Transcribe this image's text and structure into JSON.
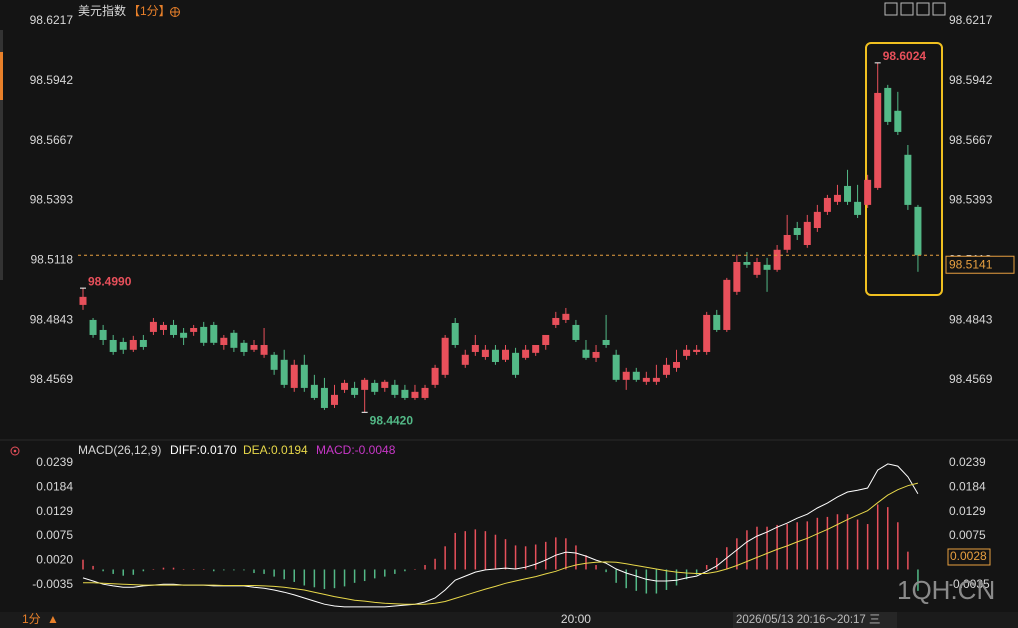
{
  "header": {
    "title": "美元指数",
    "period": "【1分】"
  },
  "footer": {
    "period": "1分",
    "time_range": "2026/05/13 20:16～20:17 三"
  },
  "watermark": "1QH.CN",
  "chart_data": [
    {
      "type": "candlestick",
      "categories": [
        null,
        null,
        null,
        null,
        null,
        null,
        null,
        null,
        null,
        null,
        null,
        null,
        null,
        null,
        null,
        null,
        null,
        null,
        null,
        null,
        null,
        null,
        null,
        null,
        null,
        null,
        null,
        null,
        null,
        null,
        null,
        null,
        null,
        null,
        null,
        null,
        null,
        null,
        null,
        null,
        null,
        null,
        null,
        null,
        null,
        null,
        null,
        null,
        null,
        "20:00",
        null,
        null,
        null,
        null,
        null,
        null,
        null,
        null,
        null,
        null,
        null,
        null,
        null,
        null,
        null,
        null,
        null,
        null,
        null,
        null,
        null,
        null,
        null,
        null,
        null,
        null,
        null,
        null,
        null,
        null,
        null,
        null,
        null,
        null
      ],
      "open": [
        98.4913,
        98.4844,
        98.4798,
        98.4752,
        98.4743,
        98.4707,
        98.4752,
        98.4789,
        98.4798,
        98.4821,
        98.4785,
        98.4789,
        98.4812,
        98.4821,
        98.4729,
        98.4785,
        98.4739,
        98.4707,
        98.4684,
        98.4684,
        98.4661,
        98.4532,
        98.4638,
        98.4546,
        98.4532,
        98.4454,
        98.4523,
        98.4532,
        98.4523,
        98.4555,
        98.4532,
        98.4546,
        98.4523,
        98.4486,
        98.4486,
        98.4546,
        98.4592,
        98.483,
        98.4638,
        98.4697,
        98.4674,
        98.4707,
        98.4661,
        98.4693,
        98.467,
        98.4693,
        98.4729,
        98.4821,
        98.4844,
        98.4821,
        98.4707,
        98.467,
        98.4752,
        98.4684,
        98.4569,
        98.4606,
        98.456,
        98.456,
        98.4592,
        98.4624,
        98.4679,
        98.4697,
        98.4697,
        98.4867,
        98.4798,
        98.4973,
        98.511,
        98.5051,
        98.5097,
        98.5074,
        98.5166,
        98.5266,
        98.5188,
        98.5266,
        98.534,
        98.5386,
        98.5459,
        98.5386,
        98.5372,
        98.545,
        98.5909,
        98.5804,
        98.5602,
        98.5363
      ],
      "high": [
        98.499,
        98.4853,
        98.4821,
        98.4775,
        98.4762,
        98.4771,
        98.4775,
        98.4853,
        98.4835,
        98.4844,
        98.4807,
        98.4821,
        98.4835,
        98.4835,
        98.4775,
        98.4798,
        98.4752,
        98.4752,
        98.4807,
        98.4697,
        98.4707,
        98.4661,
        98.4684,
        98.4592,
        98.4578,
        98.4546,
        98.4569,
        98.456,
        98.4578,
        98.4569,
        98.4569,
        98.4569,
        98.4546,
        98.4546,
        98.4546,
        98.4638,
        98.4775,
        98.4853,
        98.4707,
        98.4775,
        98.4729,
        98.4729,
        98.4729,
        98.4716,
        98.4729,
        98.4729,
        98.4775,
        98.4881,
        98.4899,
        98.4844,
        98.4752,
        98.4729,
        98.4867,
        98.4707,
        98.4624,
        98.4624,
        98.4606,
        98.4638,
        98.467,
        98.4707,
        98.4729,
        98.4729,
        98.4881,
        98.489,
        98.5037,
        98.5143,
        98.5156,
        98.5129,
        98.5129,
        98.5188,
        98.5326,
        98.5294,
        98.5326,
        98.5372,
        98.5418,
        98.5464,
        98.5533,
        98.5464,
        98.551,
        98.6024,
        98.5923,
        98.5891,
        98.5647,
        98.5372
      ],
      "low": [
        98.489,
        98.4762,
        98.4729,
        98.4684,
        98.4688,
        98.4697,
        98.4707,
        98.4775,
        98.4775,
        98.4762,
        98.4729,
        98.4771,
        98.4725,
        98.4729,
        98.4707,
        98.4697,
        98.4679,
        98.4697,
        98.467,
        98.4592,
        98.4532,
        98.4514,
        98.4514,
        98.4477,
        98.4431,
        98.444,
        98.4509,
        98.4486,
        98.442,
        98.45,
        98.4514,
        98.4486,
        98.4477,
        98.4477,
        98.4477,
        98.4532,
        98.4578,
        98.4716,
        98.4624,
        98.4679,
        98.4661,
        98.4638,
        98.4651,
        98.4578,
        98.4661,
        98.4679,
        98.4707,
        98.4807,
        98.483,
        98.4743,
        98.4661,
        98.4651,
        98.4716,
        98.456,
        98.4523,
        98.456,
        98.4546,
        98.4546,
        98.4578,
        98.4606,
        98.4661,
        98.4684,
        98.4684,
        98.4789,
        98.4789,
        98.4959,
        98.5083,
        98.5037,
        98.4973,
        98.5065,
        98.5152,
        98.5211,
        98.5175,
        98.5248,
        98.5326,
        98.5372,
        98.5372,
        98.5312,
        98.5358,
        98.5441,
        98.5739,
        98.5693,
        98.5349,
        98.5065
      ],
      "close": [
        98.495,
        98.4775,
        98.4752,
        98.4697,
        98.4707,
        98.4752,
        98.472,
        98.4835,
        98.4821,
        98.4775,
        98.4762,
        98.4807,
        98.4739,
        98.4739,
        98.4762,
        98.4716,
        98.4697,
        98.4729,
        98.4729,
        98.4615,
        98.4546,
        98.4638,
        98.4532,
        98.4486,
        98.444,
        98.45,
        98.4555,
        98.45,
        98.4569,
        98.4514,
        98.456,
        98.45,
        98.4486,
        98.4514,
        98.4532,
        98.4624,
        98.4762,
        98.4729,
        98.4684,
        98.4729,
        98.4707,
        98.4651,
        98.4707,
        98.4592,
        98.4707,
        98.4729,
        98.4775,
        98.4853,
        98.4872,
        98.4752,
        98.467,
        98.4697,
        98.4729,
        98.4569,
        98.4606,
        98.4569,
        98.4578,
        98.4578,
        98.4638,
        98.4651,
        98.4707,
        98.4707,
        98.4867,
        98.4798,
        98.5028,
        98.511,
        98.5097,
        98.511,
        98.5074,
        98.5166,
        98.5234,
        98.5234,
        98.5294,
        98.534,
        98.5404,
        98.5418,
        98.5386,
        98.5326,
        98.5487,
        98.5886,
        98.5753,
        98.5707,
        98.5372,
        98.5141
      ],
      "up_color": "#e8505b",
      "down_color": "#53b987",
      "ylim": [
        98.4348,
        98.6285
      ],
      "yticks": [
        98.6217,
        98.5942,
        98.5667,
        98.5393,
        98.5118,
        98.4843,
        98.4569
      ],
      "grid": false,
      "last_price": 98.5141,
      "last_price_color": "#e8a040",
      "annotations": [
        {
          "value": 98.499,
          "label": "98.4990"
        },
        {
          "value": 98.442,
          "label": "98.4420"
        },
        98.6024
      ]
    },
    {
      "type": "macd",
      "title": "MACD(26,12,9)",
      "series": [
        {
          "name": "DIFF:0.0170",
          "color": "#ffffff",
          "type": "line",
          "values": [
            -0.0019,
            -0.0026,
            -0.0033,
            -0.0037,
            -0.004,
            -0.004,
            -0.0037,
            -0.0035,
            -0.0033,
            -0.0033,
            -0.0035,
            -0.0035,
            -0.0035,
            -0.0037,
            -0.0037,
            -0.0037,
            -0.0037,
            -0.004,
            -0.0042,
            -0.0046,
            -0.0051,
            -0.0057,
            -0.0064,
            -0.0071,
            -0.0078,
            -0.0082,
            -0.0084,
            -0.0084,
            -0.0084,
            -0.0084,
            -0.0084,
            -0.0082,
            -0.008,
            -0.0078,
            -0.0073,
            -0.0064,
            -0.0046,
            -0.0024,
            -0.0015,
            -0.0006,
            -0.0001,
            0.0001,
            0.0003,
            0.0001,
            0.0005,
            0.0012,
            0.0021,
            0.0032,
            0.0039,
            0.0037,
            0.003,
            0.0021,
            0.0014,
            0.0001,
            -0.0008,
            -0.0015,
            -0.0022,
            -0.0026,
            -0.0026,
            -0.0024,
            -0.0019,
            -0.0015,
            -0.0004,
            0.0008,
            0.0026,
            0.0044,
            0.0062,
            0.0075,
            0.0084,
            0.0095,
            0.0104,
            0.0115,
            0.0124,
            0.0138,
            0.0149,
            0.0163,
            0.0174,
            0.0178,
            0.0183,
            0.0223,
            0.0237,
            0.0232,
            0.0208,
            0.017
          ]
        },
        {
          "name": "DEA:0.0194",
          "color": "#e8d84a",
          "type": "line",
          "values": [
            -0.003,
            -0.003,
            -0.0031,
            -0.0032,
            -0.0033,
            -0.0034,
            -0.0035,
            -0.0035,
            -0.0035,
            -0.0035,
            -0.0035,
            -0.0035,
            -0.0035,
            -0.0035,
            -0.0036,
            -0.0036,
            -0.0036,
            -0.0036,
            -0.0037,
            -0.0038,
            -0.004,
            -0.0043,
            -0.0046,
            -0.0051,
            -0.0056,
            -0.0061,
            -0.0065,
            -0.0069,
            -0.0071,
            -0.0074,
            -0.0076,
            -0.0077,
            -0.0078,
            -0.0078,
            -0.0078,
            -0.0076,
            -0.0072,
            -0.0065,
            -0.0058,
            -0.0051,
            -0.0044,
            -0.0038,
            -0.0031,
            -0.0026,
            -0.0021,
            -0.0016,
            -0.001,
            -0.0004,
            0.0004,
            0.001,
            0.0014,
            0.0016,
            0.0017,
            0.0016,
            0.0013,
            0.0009,
            0.0005,
            0.0001,
            -0.0003,
            -0.0006,
            -0.0008,
            -0.0009,
            -0.0009,
            -0.0005,
            0.0001,
            0.0009,
            0.0018,
            0.0027,
            0.0036,
            0.0045,
            0.0053,
            0.0062,
            0.007,
            0.008,
            0.009,
            0.0101,
            0.0112,
            0.0122,
            0.0132,
            0.015,
            0.0167,
            0.0179,
            0.0188,
            0.0194
          ]
        },
        {
          "name": "MACD:-0.0048",
          "color": "#c837c8",
          "type": "bar",
          "up_color": "#e8505b",
          "down_color": "#53b987",
          "values": [
            0.0022,
            0.0008,
            -0.0004,
            -0.001,
            -0.0014,
            -0.0012,
            -0.0004,
            0.0,
            0.0004,
            0.0004,
            0.0,
            0.0,
            0.0,
            -0.0004,
            -0.0002,
            -0.0002,
            -0.0002,
            -0.0008,
            -0.001,
            -0.0016,
            -0.0022,
            -0.0028,
            -0.0036,
            -0.004,
            -0.0044,
            -0.0042,
            -0.0038,
            -0.003,
            -0.0026,
            -0.002,
            -0.0016,
            -0.001,
            -0.0004,
            0.0,
            0.001,
            0.0024,
            0.0052,
            0.0082,
            0.0086,
            0.009,
            0.0086,
            0.0078,
            0.0068,
            0.0054,
            0.0052,
            0.0056,
            0.0062,
            0.0072,
            0.007,
            0.0054,
            0.0032,
            0.001,
            -0.0006,
            -0.003,
            -0.0042,
            -0.0048,
            -0.0054,
            -0.0054,
            -0.0046,
            -0.0036,
            -0.0022,
            -0.0012,
            0.001,
            0.0026,
            0.005,
            0.007,
            0.0088,
            0.0096,
            0.0096,
            0.01,
            0.0102,
            0.0106,
            0.0108,
            0.0116,
            0.0118,
            0.0124,
            0.0124,
            0.0112,
            0.0102,
            0.0146,
            0.014,
            0.0106,
            0.004,
            -0.0048
          ]
        }
      ],
      "ylim": [
        -0.0091,
        0.0257
      ],
      "yticks": [
        0.0239,
        0.0184,
        0.0129,
        0.0075,
        {
          "value": 0.002,
          "label": "0.0020"
        },
        -0.0035
      ],
      "grid": false,
      "marker": 0.0028,
      "marker_color": "#e8a040"
    }
  ]
}
